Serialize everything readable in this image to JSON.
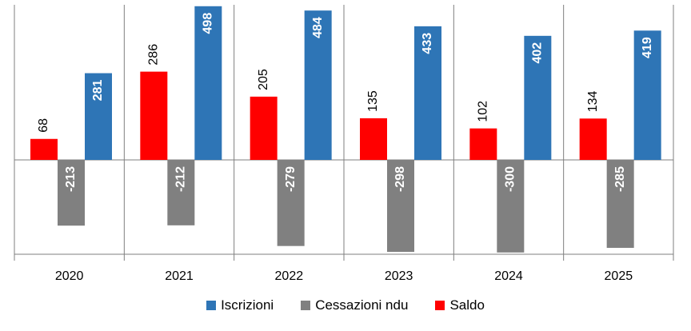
{
  "chart_data": {
    "type": "bar",
    "categories": [
      "2020",
      "2021",
      "2022",
      "2023",
      "2024",
      "2025"
    ],
    "series": [
      {
        "name": "Saldo",
        "values": [
          68,
          286,
          205,
          135,
          102,
          134
        ],
        "color": "#ff0000"
      },
      {
        "name": "Cessazioni ndu",
        "values": [
          -213,
          -212,
          -279,
          -298,
          -300,
          -285
        ],
        "color": "#808080"
      },
      {
        "name": "Iscrizioni",
        "values": [
          281,
          498,
          484,
          433,
          402,
          419
        ],
        "color": "#2e75b6"
      }
    ],
    "legend_order": [
      "Iscrizioni",
      "Cessazioni ndu",
      "Saldo"
    ],
    "ylim": [
      -300,
      498
    ],
    "grid": false,
    "legend_position": "bottom"
  }
}
